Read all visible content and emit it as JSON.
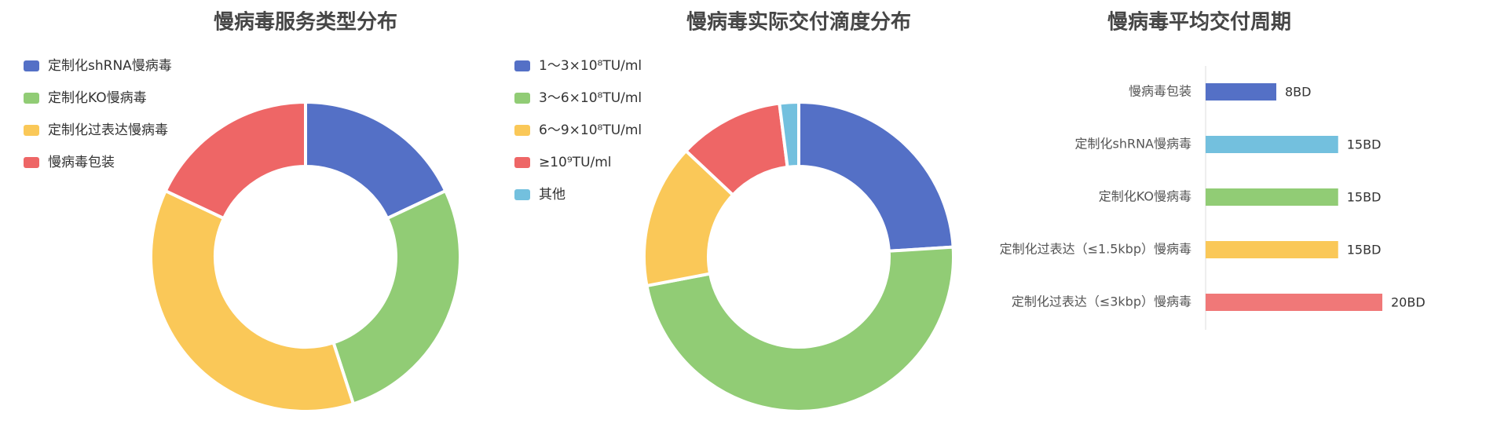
{
  "chart_data": [
    {
      "type": "pie",
      "title": "慢病毒服务类型分布",
      "categories": [
        "定制化shRNA慢病毒",
        "定制化KO慢病毒",
        "定制化过表达慢病毒",
        "慢病毒包装"
      ],
      "values": [
        18,
        27,
        37,
        18
      ],
      "colors": [
        "#5470c6",
        "#91cc75",
        "#fac858",
        "#ee6666"
      ]
    },
    {
      "type": "pie",
      "title": "慢病毒实际交付滴度分布",
      "categories": [
        "1～3×10⁸TU/ml",
        "3～6×10⁸TU/ml",
        "6～9×10⁸TU/ml",
        "≥10⁹TU/ml",
        "其他"
      ],
      "values": [
        24,
        48,
        15,
        11,
        2
      ],
      "colors": [
        "#5470c6",
        "#91cc75",
        "#fac858",
        "#ee6666",
        "#73c0de"
      ]
    },
    {
      "type": "hbar",
      "title": "慢病毒平均交付周期",
      "categories": [
        "慢病毒包装",
        "定制化shRNA慢病毒",
        "定制化KO慢病毒",
        "定制化过表达（≤1.5kbp）慢病毒",
        "定制化过表达（≤3kbp）慢病毒"
      ],
      "values": [
        8,
        15,
        15,
        15,
        20
      ],
      "value_labels": [
        "8BD",
        "15BD",
        "15BD",
        "15BD",
        "20BD"
      ],
      "colors": [
        "#5470c6",
        "#73c0de",
        "#91cc75",
        "#fac858",
        "#f07878"
      ],
      "xlim": [
        0,
        24
      ]
    }
  ]
}
